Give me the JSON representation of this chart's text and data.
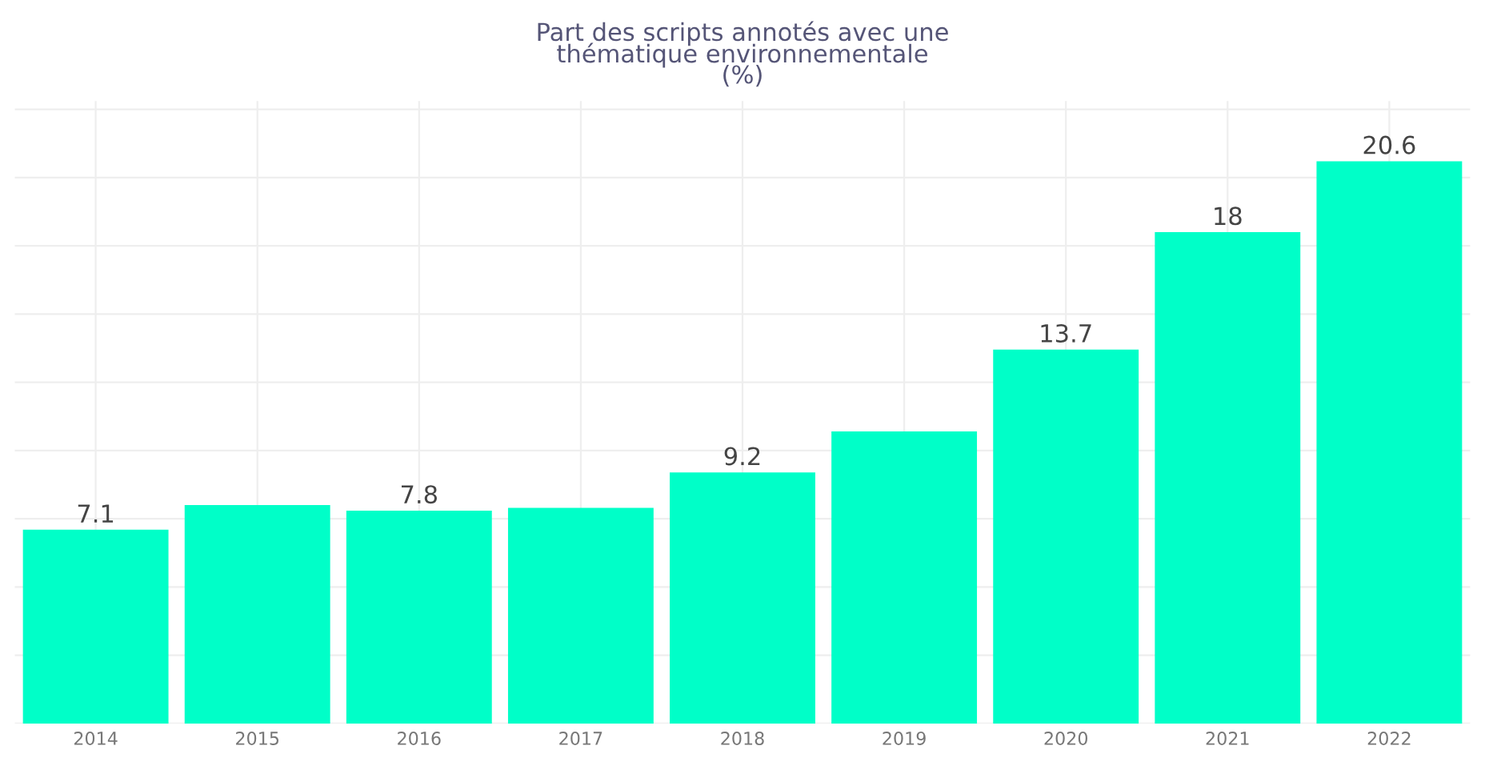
{
  "chart_data": {
    "type": "bar",
    "title": "Part des scripts annotés avec une\nthématique environnementale\n(%)",
    "categories": [
      "2014",
      "2015",
      "2016",
      "2017",
      "2018",
      "2019",
      "2020",
      "2021",
      "2022"
    ],
    "values": [
      7.1,
      8.0,
      7.8,
      7.9,
      9.2,
      10.7,
      13.7,
      18,
      20.6
    ],
    "value_labels": [
      "7.1",
      null,
      "7.8",
      null,
      "9.2",
      null,
      "13.7",
      "18",
      "20.6"
    ],
    "color": "#00ffc8",
    "ylim": [
      0,
      22.8
    ],
    "yticks": [
      {
        "value": 0,
        "label": null
      },
      {
        "value": 2.5,
        "label": null
      },
      {
        "value": 5,
        "label": null
      },
      {
        "value": 7.5,
        "label": null
      },
      {
        "value": 10,
        "label": null
      },
      {
        "value": 12.5,
        "label": null
      },
      {
        "value": 15,
        "label": null
      },
      {
        "value": 17.5,
        "label": null
      },
      {
        "value": 20,
        "label": null
      },
      {
        "value": 22.5,
        "label": null
      }
    ],
    "tick_labels": "x",
    "grid": true
  }
}
